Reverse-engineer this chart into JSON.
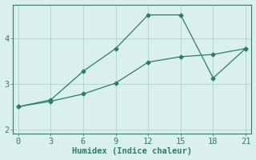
{
  "line1_x": [
    0,
    3,
    6,
    9,
    12,
    15,
    18,
    21
  ],
  "line1_y": [
    2.5,
    2.65,
    3.28,
    3.78,
    4.52,
    4.52,
    3.13,
    3.78
  ],
  "line2_x": [
    0,
    3,
    6,
    9,
    12,
    15,
    18,
    21
  ],
  "line2_y": [
    2.5,
    2.62,
    2.78,
    3.02,
    3.48,
    3.6,
    3.65,
    3.78
  ],
  "line_color": "#2a7d6e",
  "bg_color": "#daf0ee",
  "grid_color": "#b0d8d4",
  "xlabel": "Humidex (Indice chaleur)",
  "xlim": [
    -0.5,
    21.5
  ],
  "ylim": [
    1.9,
    4.75
  ],
  "xticks": [
    0,
    3,
    6,
    9,
    12,
    15,
    18,
    21
  ],
  "yticks": [
    2,
    3,
    4
  ],
  "marker": "D",
  "marker_size": 2.5,
  "linewidth": 0.9,
  "font_size": 7.5
}
